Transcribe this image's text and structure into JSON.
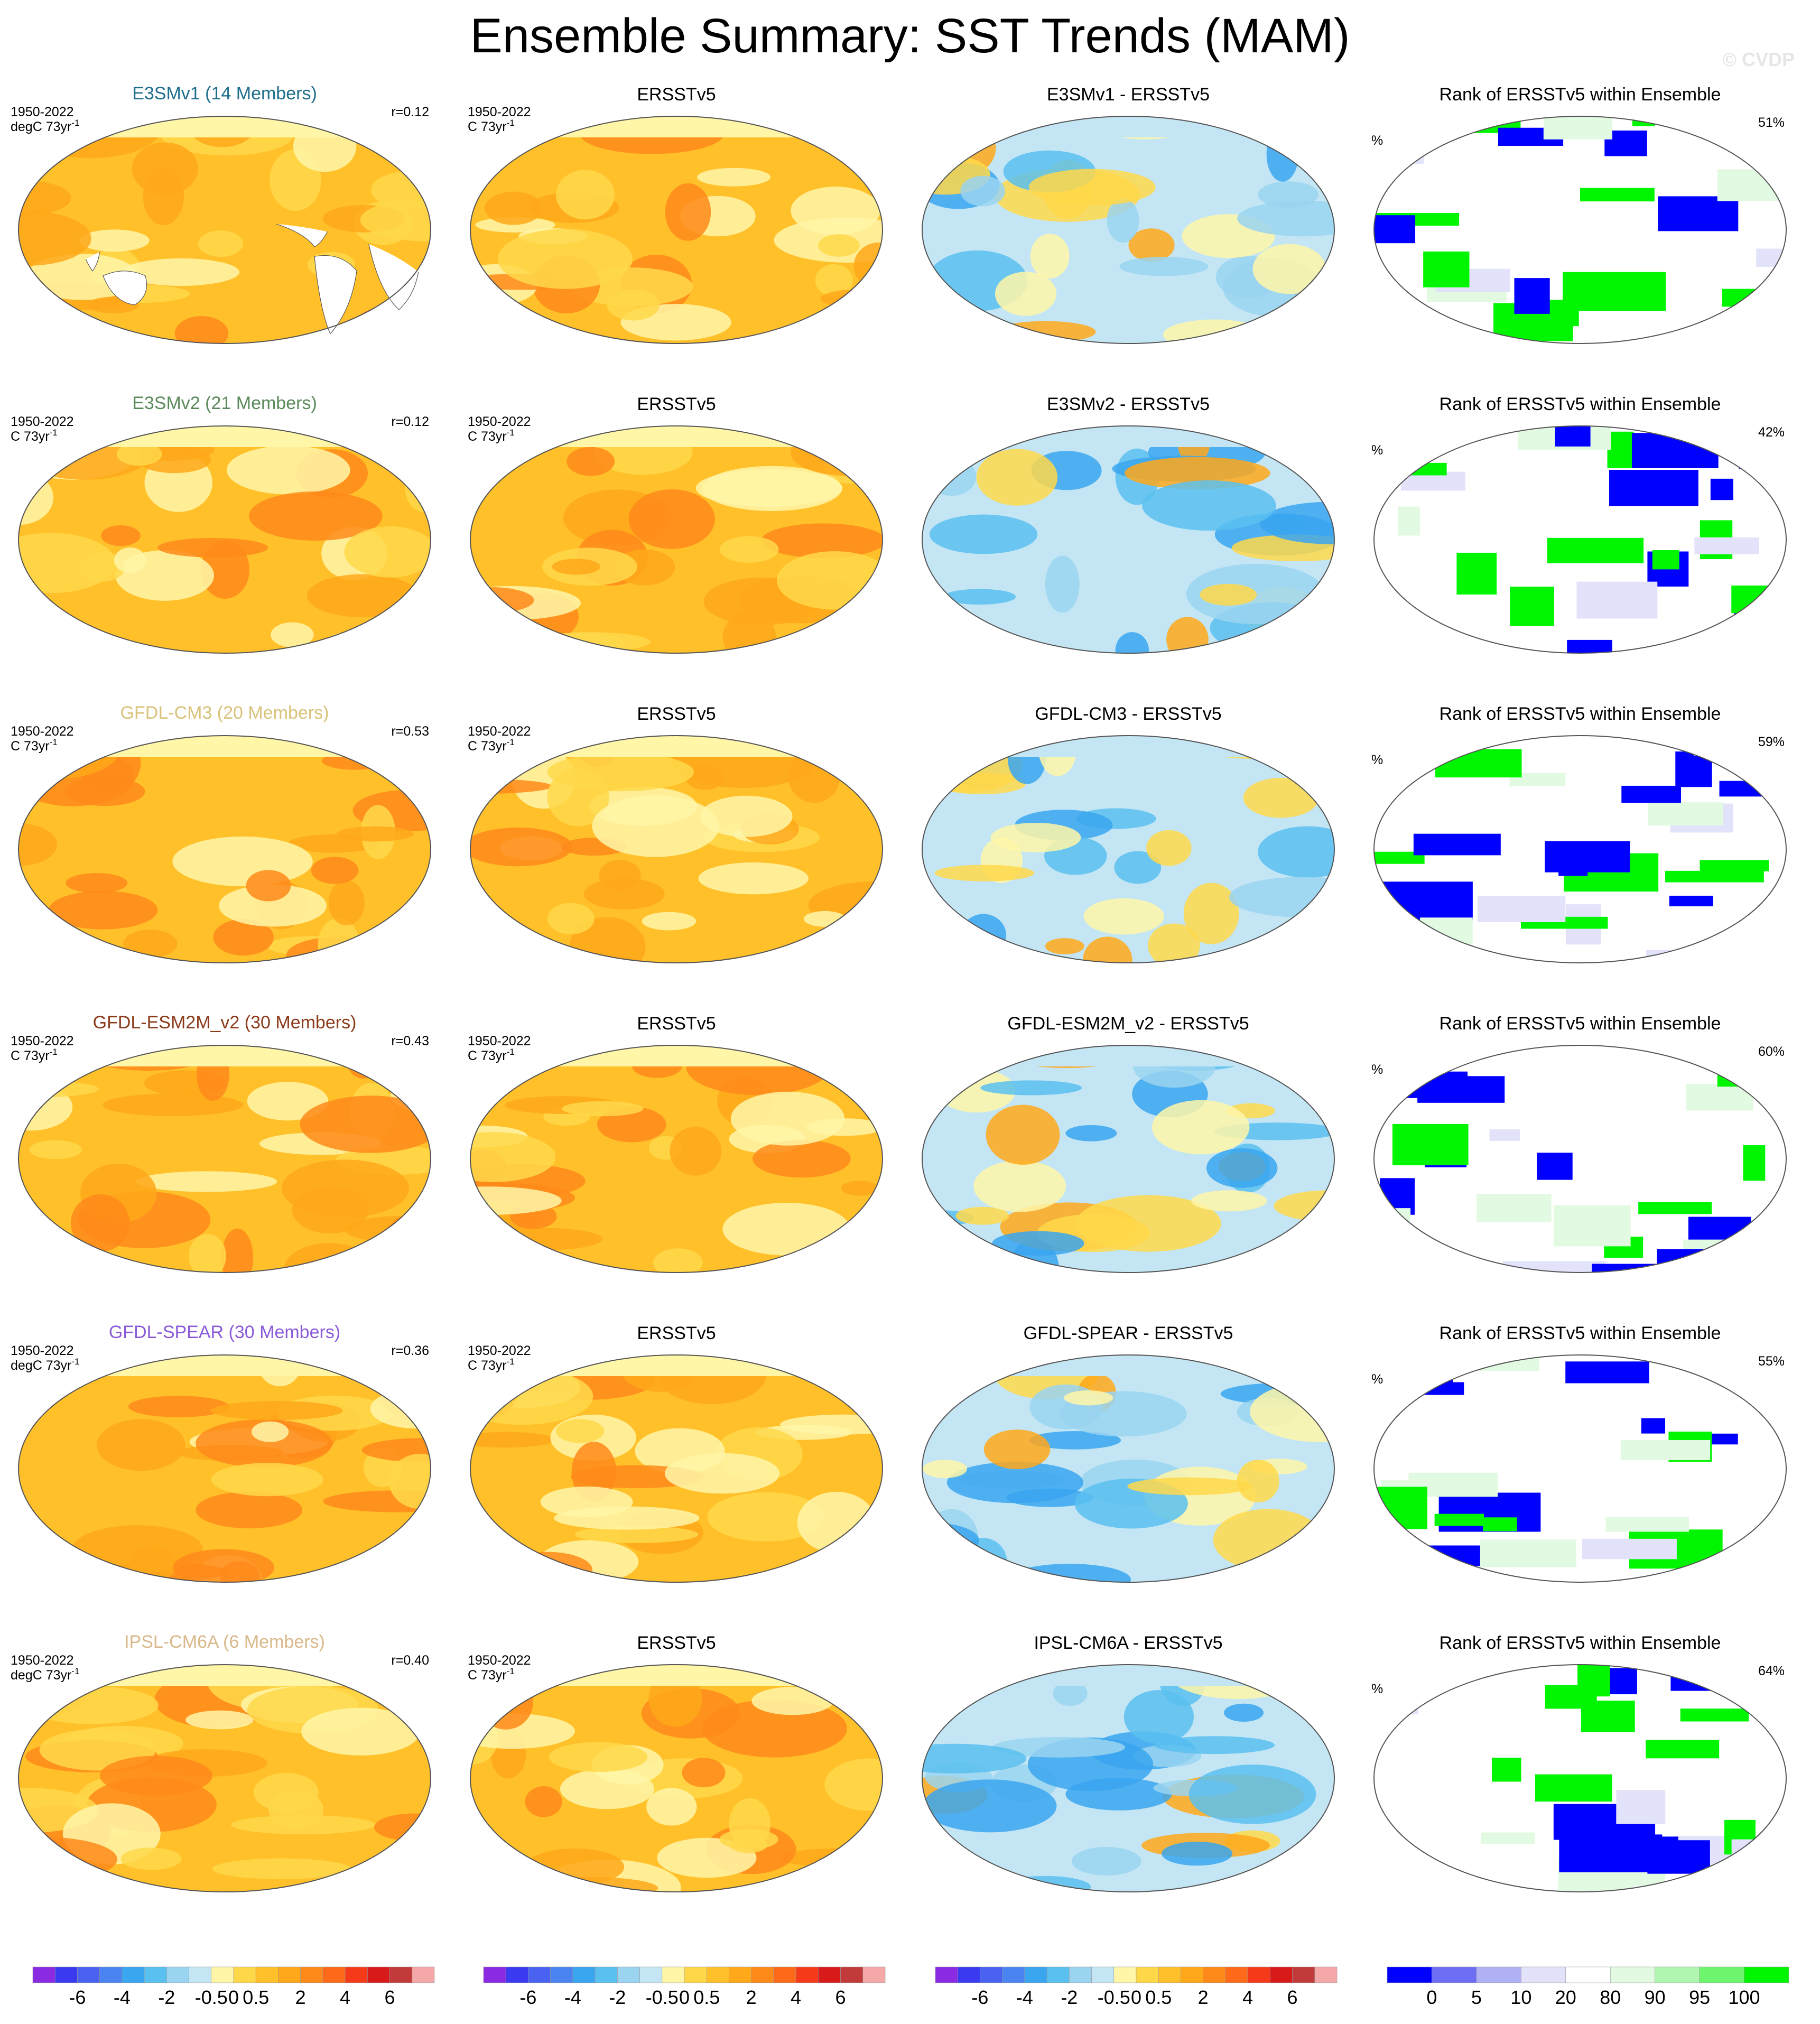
{
  "title": "Ensemble Summary: SST Trends (MAM)",
  "copyright": "© CVDP",
  "rows": [
    {
      "model_title": "E3SMv1 (14 Members)",
      "title_color": "#1f6e8c",
      "period": "1950-2022",
      "units": "degC 73yr",
      "r": "r=0.12",
      "obs_title": "ERSSTv5",
      "obs_units": "C 73yr",
      "diff_title": "E3SMv1 - ERSSTv5",
      "rank_title": "Rank of ERSSTv5 within Ensemble",
      "rank_pct": "51%"
    },
    {
      "model_title": "E3SMv2 (21 Members)",
      "title_color": "#5a8a5a",
      "period": "1950-2022",
      "units": "C 73yr",
      "r": "r=0.12",
      "obs_title": "ERSSTv5",
      "obs_units": "C 73yr",
      "diff_title": "E3SMv2 - ERSSTv5",
      "rank_title": "Rank of ERSSTv5 within Ensemble",
      "rank_pct": "42%"
    },
    {
      "model_title": "GFDL-CM3 (20 Members)",
      "title_color": "#d9c27a",
      "period": "1950-2022",
      "units": "C 73yr",
      "r": "r=0.53",
      "obs_title": "ERSSTv5",
      "obs_units": "C 73yr",
      "diff_title": "GFDL-CM3 - ERSSTv5",
      "rank_title": "Rank of ERSSTv5 within Ensemble",
      "rank_pct": "59%"
    },
    {
      "model_title": "GFDL-ESM2M_v2 (30 Members)",
      "title_color": "#8b3a1a",
      "period": "1950-2022",
      "units": "C 73yr",
      "r": "r=0.43",
      "obs_title": "ERSSTv5",
      "obs_units": "C 73yr",
      "diff_title": "GFDL-ESM2M_v2 - ERSSTv5",
      "rank_title": "Rank of ERSSTv5 within Ensemble",
      "rank_pct": "60%"
    },
    {
      "model_title": "GFDL-SPEAR (30 Members)",
      "title_color": "#8a5ad8",
      "period": "1950-2022",
      "units": "degC 73yr",
      "r": "r=0.36",
      "obs_title": "ERSSTv5",
      "obs_units": "C 73yr",
      "diff_title": "GFDL-SPEAR - ERSSTv5",
      "rank_title": "Rank of ERSSTv5 within Ensemble",
      "rank_pct": "55%"
    },
    {
      "model_title": "IPSL-CM6A (6 Members)",
      "title_color": "#d9b88a",
      "period": "1950-2022",
      "units": "degC 73yr",
      "r": "r=0.40",
      "obs_title": "ERSSTv5",
      "obs_units": "C 73yr",
      "diff_title": "IPSL-CM6A - ERSSTv5",
      "rank_title": "Rank of ERSSTv5 within Ensemble",
      "rank_pct": "64%"
    }
  ],
  "units_superscript": "-1",
  "rank_units": "%",
  "trend_colorbar": {
    "colors": [
      "#8a2be2",
      "#3a3af0",
      "#4a62f0",
      "#4a84f0",
      "#3aa6f0",
      "#5ac0f0",
      "#9ad4f0",
      "#c4e6f4",
      "#fff6a8",
      "#ffd84a",
      "#ffc02a",
      "#ffa81a",
      "#ff8a1a",
      "#ff6a1a",
      "#f53a1a",
      "#d81a1a",
      "#c23a3a",
      "#f4a8a8"
    ],
    "labels": [
      "-6",
      "-4",
      "-2",
      "-0.5",
      "0",
      "0.5",
      "2",
      "4",
      "6"
    ]
  },
  "rank_colorbar": {
    "colors": [
      "#0000ff",
      "#6e6ef5",
      "#b0b0f5",
      "#e2e2fa",
      "#ffffff",
      "#e2fae2",
      "#b0f5b0",
      "#6ef56e",
      "#00f500"
    ],
    "labels": [
      "0",
      "5",
      "10",
      "20",
      "80",
      "90",
      "95",
      "100"
    ]
  },
  "chart_data": {
    "type": "heatmap",
    "title": "Ensemble Summary: SST Trends (MAM)",
    "panels_per_row": [
      "ensemble mean trend",
      "ERSSTv5",
      "model minus ERSSTv5",
      "rank of ERSSTv5 within ensemble"
    ],
    "trend_levels": [
      -6,
      -4,
      -2,
      -0.5,
      0,
      0.5,
      2,
      4,
      6
    ],
    "rank_levels": [
      0,
      5,
      10,
      20,
      80,
      90,
      95,
      100
    ],
    "pattern_correlations": [
      {
        "model": "E3SMv1",
        "members": 14,
        "r": 0.12,
        "rank_percent": 51
      },
      {
        "model": "E3SMv2",
        "members": 21,
        "r": 0.12,
        "rank_percent": 42
      },
      {
        "model": "GFDL-CM3",
        "members": 20,
        "r": 0.53,
        "rank_percent": 59
      },
      {
        "model": "GFDL-ESM2M_v2",
        "members": 30,
        "r": 0.43,
        "rank_percent": 60
      },
      {
        "model": "GFDL-SPEAR",
        "members": 30,
        "r": 0.36,
        "rank_percent": 55
      },
      {
        "model": "IPSL-CM6A",
        "members": 6,
        "r": 0.4,
        "rank_percent": 64
      }
    ]
  }
}
